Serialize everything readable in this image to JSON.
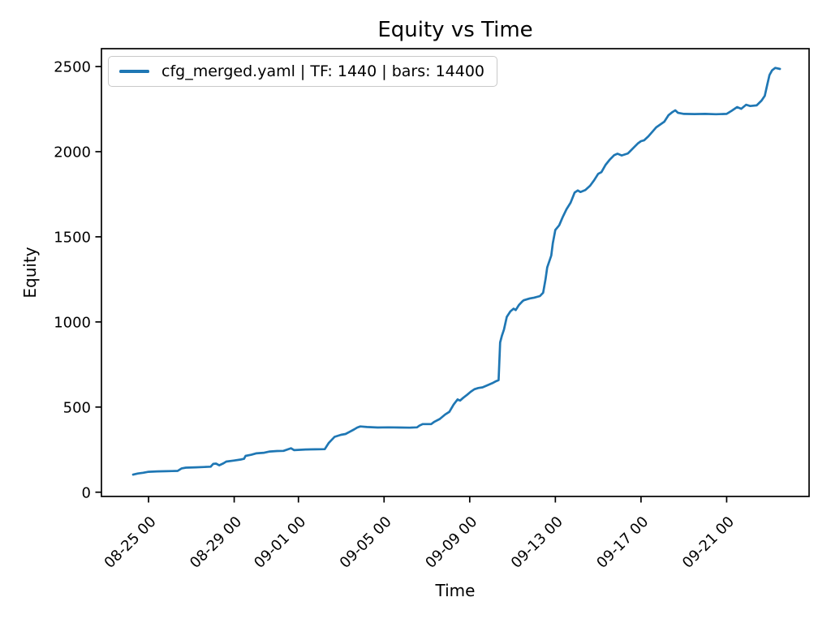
{
  "chart_data": {
    "type": "line",
    "title": "Equity vs Time",
    "xlabel": "Time",
    "ylabel": "Equity",
    "grid": false,
    "legend": {
      "position": "upper left",
      "entries": [
        "cfg_merged.yaml | TF: 1440 | bars: 14400"
      ]
    },
    "axes": {
      "xlim": [
        -1.2,
        31.85
      ],
      "ylim": [
        -25,
        2605
      ],
      "yticks": [
        0,
        500,
        1000,
        1500,
        2000,
        2500
      ],
      "xticks": [
        {
          "day": 1,
          "label": "08-25 00"
        },
        {
          "day": 5,
          "label": "08-29 00"
        },
        {
          "day": 8,
          "label": "09-01 00"
        },
        {
          "day": 12,
          "label": "09-05 00"
        },
        {
          "day": 16,
          "label": "09-09 00"
        },
        {
          "day": 20,
          "label": "09-13 00"
        },
        {
          "day": 24,
          "label": "09-17 00"
        },
        {
          "day": 28,
          "label": "09-21 00"
        }
      ]
    },
    "series": [
      {
        "name": "cfg_merged.yaml | TF: 1440 | bars: 14400",
        "color": "#1f77b4",
        "points": [
          [
            0.28,
            103
          ],
          [
            0.5,
            110
          ],
          [
            0.75,
            114
          ],
          [
            1.0,
            120
          ],
          [
            1.4,
            122
          ],
          [
            1.8,
            123
          ],
          [
            2.1,
            124
          ],
          [
            2.36,
            125
          ],
          [
            2.55,
            140
          ],
          [
            2.74,
            144
          ],
          [
            3.2,
            146
          ],
          [
            3.6,
            148
          ],
          [
            3.9,
            150
          ],
          [
            4.02,
            166
          ],
          [
            4.15,
            168
          ],
          [
            4.3,
            158
          ],
          [
            4.5,
            170
          ],
          [
            4.63,
            180
          ],
          [
            5.0,
            186
          ],
          [
            5.3,
            192
          ],
          [
            5.46,
            196
          ],
          [
            5.53,
            213
          ],
          [
            5.8,
            220
          ],
          [
            6.02,
            228
          ],
          [
            6.4,
            232
          ],
          [
            6.66,
            239
          ],
          [
            7.0,
            242
          ],
          [
            7.3,
            243
          ],
          [
            7.65,
            258
          ],
          [
            7.8,
            247
          ],
          [
            8.33,
            251
          ],
          [
            8.8,
            252
          ],
          [
            9.23,
            253
          ],
          [
            9.42,
            290
          ],
          [
            9.69,
            325
          ],
          [
            9.99,
            337
          ],
          [
            10.2,
            342
          ],
          [
            10.4,
            355
          ],
          [
            10.59,
            368
          ],
          [
            10.75,
            380
          ],
          [
            10.89,
            386
          ],
          [
            11.2,
            383
          ],
          [
            11.7,
            380
          ],
          [
            12.2,
            381
          ],
          [
            12.7,
            380
          ],
          [
            13.2,
            379
          ],
          [
            13.54,
            381
          ],
          [
            13.65,
            391
          ],
          [
            13.8,
            400
          ],
          [
            14.2,
            400
          ],
          [
            14.35,
            414
          ],
          [
            14.6,
            430
          ],
          [
            14.85,
            456
          ],
          [
            15.05,
            472
          ],
          [
            15.25,
            515
          ],
          [
            15.43,
            545
          ],
          [
            15.55,
            538
          ],
          [
            15.7,
            555
          ],
          [
            15.88,
            572
          ],
          [
            16.05,
            590
          ],
          [
            16.22,
            605
          ],
          [
            16.4,
            612
          ],
          [
            16.6,
            616
          ],
          [
            16.8,
            627
          ],
          [
            17.05,
            640
          ],
          [
            17.2,
            650
          ],
          [
            17.35,
            658
          ],
          [
            17.42,
            880
          ],
          [
            17.5,
            918
          ],
          [
            17.6,
            955
          ],
          [
            17.73,
            1030
          ],
          [
            17.9,
            1062
          ],
          [
            18.05,
            1078
          ],
          [
            18.15,
            1070
          ],
          [
            18.3,
            1100
          ],
          [
            18.45,
            1120
          ],
          [
            18.52,
            1127
          ],
          [
            18.8,
            1138
          ],
          [
            19.01,
            1143
          ],
          [
            19.28,
            1152
          ],
          [
            19.43,
            1172
          ],
          [
            19.54,
            1250
          ],
          [
            19.62,
            1320
          ],
          [
            19.81,
            1390
          ],
          [
            19.88,
            1462
          ],
          [
            20.0,
            1540
          ],
          [
            20.18,
            1568
          ],
          [
            20.34,
            1615
          ],
          [
            20.52,
            1662
          ],
          [
            20.71,
            1700
          ],
          [
            20.9,
            1760
          ],
          [
            21.05,
            1772
          ],
          [
            21.17,
            1763
          ],
          [
            21.4,
            1775
          ],
          [
            21.62,
            1800
          ],
          [
            21.81,
            1832
          ],
          [
            22.0,
            1870
          ],
          [
            22.15,
            1880
          ],
          [
            22.34,
            1922
          ],
          [
            22.53,
            1952
          ],
          [
            22.75,
            1980
          ],
          [
            22.9,
            1988
          ],
          [
            23.1,
            1978
          ],
          [
            23.39,
            1990
          ],
          [
            23.47,
            2000
          ],
          [
            23.66,
            2024
          ],
          [
            23.85,
            2048
          ],
          [
            24.0,
            2062
          ],
          [
            24.15,
            2067
          ],
          [
            24.34,
            2090
          ],
          [
            24.71,
            2143
          ],
          [
            25.09,
            2176
          ],
          [
            25.28,
            2214
          ],
          [
            25.47,
            2233
          ],
          [
            25.6,
            2243
          ],
          [
            25.73,
            2228
          ],
          [
            26.0,
            2222
          ],
          [
            26.5,
            2221
          ],
          [
            27.0,
            2222
          ],
          [
            27.5,
            2220
          ],
          [
            28.0,
            2222
          ],
          [
            28.23,
            2240
          ],
          [
            28.49,
            2262
          ],
          [
            28.68,
            2252
          ],
          [
            28.91,
            2276
          ],
          [
            29.1,
            2268
          ],
          [
            29.4,
            2272
          ],
          [
            29.63,
            2300
          ],
          [
            29.78,
            2328
          ],
          [
            29.89,
            2390
          ],
          [
            30.0,
            2450
          ],
          [
            30.12,
            2478
          ],
          [
            30.27,
            2492
          ],
          [
            30.49,
            2486
          ]
        ]
      }
    ]
  }
}
